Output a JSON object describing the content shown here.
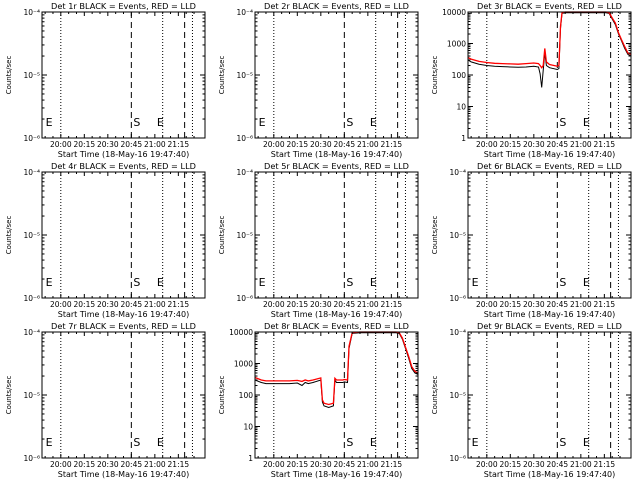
{
  "figure": {
    "xtick_labels": [
      "20:00",
      "20:15",
      "20:30",
      "20:45",
      "21:00",
      "21:15"
    ],
    "xtick_values_min": [
      0,
      15,
      30,
      45,
      60,
      75
    ],
    "xlabel": "Start Time (18-May-16 19:47:40)",
    "xlim_min": [
      -12,
      92
    ],
    "ylabel": "Counts/sec",
    "colors": {
      "events": "#000000",
      "lld": "#ff0000"
    }
  },
  "chart_data": [
    {
      "type": "line",
      "title": "Det 1r BLACK = Events, RED = LLD",
      "yscale": "log",
      "ylim": [
        1e-06,
        0.0001
      ],
      "yticks": [
        1e-06,
        1e-05,
        0.0001
      ],
      "ytick_labels": [
        "10⁻⁶",
        "10⁻⁵",
        "10⁻⁴"
      ],
      "markers": {
        "dotted": [
          0,
          65,
          84
        ],
        "dashed": [
          45,
          79
        ]
      },
      "marker_labels": [
        {
          "text": "S",
          "x": 45
        },
        {
          "text": "E",
          "x": 60
        },
        {
          "text": "E",
          "x": -11
        }
      ],
      "series": []
    },
    {
      "type": "line",
      "title": "Det 2r BLACK = Events, RED = LLD",
      "yscale": "log",
      "ylim": [
        1e-06,
        0.0001
      ],
      "yticks": [
        1e-06,
        1e-05,
        0.0001
      ],
      "ytick_labels": [
        "10⁻⁶",
        "10⁻⁵",
        "10⁻⁴"
      ],
      "markers": {
        "dotted": [
          0,
          65,
          84
        ],
        "dashed": [
          45,
          79
        ]
      },
      "marker_labels": [
        {
          "text": "S",
          "x": 45
        },
        {
          "text": "E",
          "x": 60
        },
        {
          "text": "E",
          "x": -11
        }
      ],
      "series": []
    },
    {
      "type": "line",
      "title": "Det 3r BLACK = Events, RED = LLD",
      "yscale": "log",
      "ylim": [
        1,
        10000
      ],
      "yticks": [
        1,
        10,
        100,
        1000,
        10000
      ],
      "ytick_labels": [
        "1",
        "10",
        "100",
        "1000",
        "10000"
      ],
      "markers": {
        "dotted": [
          0,
          65,
          84
        ],
        "dashed": [
          45,
          79
        ]
      },
      "marker_labels": [
        {
          "text": "S",
          "x": 45
        },
        {
          "text": "E",
          "x": 60
        }
      ],
      "series": [
        {
          "color": "#000000",
          "x": [
            -12,
            -10,
            -5,
            0,
            5,
            10,
            15,
            20,
            25,
            30,
            33,
            34,
            35,
            36,
            37,
            38,
            40,
            45,
            46,
            47,
            48,
            50,
            55,
            60,
            65,
            70,
            74,
            76,
            78,
            80,
            82,
            84,
            86,
            88,
            90,
            92
          ],
          "y": [
            300,
            260,
            220,
            200,
            190,
            185,
            180,
            175,
            180,
            190,
            180,
            110,
            40,
            140,
            500,
            200,
            170,
            150,
            160,
            3000,
            9000,
            9500,
            9500,
            9500,
            9500,
            9500,
            9500,
            9500,
            9000,
            6000,
            4000,
            2000,
            1200,
            700,
            450,
            400
          ]
        },
        {
          "color": "#ff0000",
          "x": [
            -12,
            -10,
            -5,
            0,
            5,
            10,
            15,
            20,
            25,
            30,
            33,
            34,
            35,
            36,
            37,
            38,
            40,
            45,
            46,
            47,
            48,
            50,
            55,
            60,
            65,
            70,
            74,
            76,
            78,
            80,
            82,
            84,
            86,
            88,
            90,
            92
          ],
          "y": [
            360,
            320,
            270,
            250,
            235,
            230,
            225,
            220,
            230,
            240,
            230,
            200,
            170,
            200,
            700,
            260,
            215,
            190,
            200,
            3500,
            9500,
            10000,
            10000,
            10000,
            10000,
            10000,
            10000,
            10000,
            9500,
            6500,
            4500,
            2200,
            1300,
            800,
            500,
            450
          ]
        }
      ]
    },
    {
      "type": "line",
      "title": "Det 4r BLACK = Events, RED = LLD",
      "yscale": "log",
      "ylim": [
        1e-06,
        0.0001
      ],
      "yticks": [
        1e-06,
        1e-05,
        0.0001
      ],
      "ytick_labels": [
        "10⁻⁶",
        "10⁻⁵",
        "10⁻⁴"
      ],
      "markers": {
        "dotted": [
          0,
          65,
          84
        ],
        "dashed": [
          45,
          79
        ]
      },
      "marker_labels": [
        {
          "text": "S",
          "x": 45
        },
        {
          "text": "E",
          "x": 60
        },
        {
          "text": "E",
          "x": -11
        }
      ],
      "series": []
    },
    {
      "type": "line",
      "title": "Det 5r BLACK = Events, RED = LLD",
      "yscale": "log",
      "ylim": [
        1e-06,
        0.0001
      ],
      "yticks": [
        1e-06,
        1e-05,
        0.0001
      ],
      "ytick_labels": [
        "10⁻⁶",
        "10⁻⁵",
        "10⁻⁴"
      ],
      "markers": {
        "dotted": [
          0,
          65,
          84
        ],
        "dashed": [
          45,
          79
        ]
      },
      "marker_labels": [
        {
          "text": "S",
          "x": 45
        },
        {
          "text": "E",
          "x": 60
        },
        {
          "text": "E",
          "x": -11
        }
      ],
      "series": []
    },
    {
      "type": "line",
      "title": "Det 6r BLACK = Events, RED = LLD",
      "yscale": "log",
      "ylim": [
        1e-06,
        0.0001
      ],
      "yticks": [
        1e-06,
        1e-05,
        0.0001
      ],
      "ytick_labels": [
        "10⁻⁶",
        "10⁻⁵",
        "10⁻⁴"
      ],
      "markers": {
        "dotted": [
          0,
          65,
          84
        ],
        "dashed": [
          45,
          79
        ]
      },
      "marker_labels": [
        {
          "text": "S",
          "x": 45
        },
        {
          "text": "E",
          "x": 60
        },
        {
          "text": "E",
          "x": -11
        }
      ],
      "series": []
    },
    {
      "type": "line",
      "title": "Det 7r BLACK = Events, RED = LLD",
      "yscale": "log",
      "ylim": [
        1e-06,
        0.0001
      ],
      "yticks": [
        1e-06,
        1e-05,
        0.0001
      ],
      "ytick_labels": [
        "10⁻⁶",
        "10⁻⁵",
        "10⁻⁴"
      ],
      "markers": {
        "dotted": [
          0,
          65,
          84
        ],
        "dashed": [
          45,
          79
        ]
      },
      "marker_labels": [
        {
          "text": "S",
          "x": 45
        },
        {
          "text": "E",
          "x": 60
        },
        {
          "text": "E",
          "x": -11
        }
      ],
      "series": []
    },
    {
      "type": "line",
      "title": "Det 8r BLACK = Events, RED = LLD",
      "yscale": "log",
      "ylim": [
        1,
        10000
      ],
      "yticks": [
        1,
        10,
        100,
        1000,
        10000
      ],
      "ytick_labels": [
        "1",
        "10",
        "100",
        "1000",
        "10000"
      ],
      "markers": {
        "dotted": [
          0,
          65,
          84
        ],
        "dashed": [
          45,
          79
        ]
      },
      "marker_labels": [
        {
          "text": "S",
          "x": 45
        },
        {
          "text": "E",
          "x": 60
        }
      ],
      "series": [
        {
          "color": "#000000",
          "x": [
            -12,
            -8,
            -5,
            0,
            5,
            10,
            15,
            18,
            20,
            22,
            25,
            30,
            31,
            32,
            35,
            38,
            39,
            40,
            42,
            44,
            45,
            47,
            48,
            50,
            55,
            60,
            65,
            70,
            75,
            78,
            80,
            82,
            84,
            86,
            88,
            90,
            92
          ],
          "y": [
            300,
            250,
            230,
            230,
            230,
            230,
            240,
            200,
            250,
            230,
            250,
            300,
            60,
            45,
            40,
            45,
            300,
            250,
            250,
            250,
            260,
            250,
            3000,
            9000,
            9500,
            9500,
            9500,
            9500,
            9500,
            9500,
            9000,
            6000,
            3000,
            1500,
            700,
            500,
            450
          ]
        },
        {
          "color": "#ff0000",
          "x": [
            -12,
            -8,
            -5,
            0,
            5,
            10,
            15,
            18,
            20,
            22,
            25,
            30,
            31,
            32,
            35,
            38,
            39,
            40,
            42,
            44,
            45,
            47,
            48,
            50,
            55,
            60,
            65,
            70,
            75,
            78,
            80,
            82,
            84,
            86,
            88,
            90,
            92
          ],
          "y": [
            360,
            300,
            280,
            280,
            280,
            280,
            290,
            270,
            300,
            280,
            300,
            350,
            70,
            55,
            50,
            55,
            340,
            300,
            300,
            300,
            310,
            300,
            3500,
            9500,
            10000,
            10000,
            10000,
            10000,
            10000,
            10000,
            9500,
            6500,
            3300,
            1700,
            800,
            560,
            500
          ]
        }
      ]
    },
    {
      "type": "line",
      "title": "Det 9r BLACK = Events, RED = LLD",
      "yscale": "log",
      "ylim": [
        1e-06,
        0.0001
      ],
      "yticks": [
        1e-06,
        1e-05,
        0.0001
      ],
      "ytick_labels": [
        "10⁻⁶",
        "10⁻⁵",
        "10⁻⁴"
      ],
      "markers": {
        "dotted": [
          0,
          65,
          84
        ],
        "dashed": [
          45,
          79
        ]
      },
      "marker_labels": [
        {
          "text": "S",
          "x": 45
        },
        {
          "text": "E",
          "x": 60
        },
        {
          "text": "E",
          "x": -11
        }
      ],
      "series": []
    }
  ]
}
